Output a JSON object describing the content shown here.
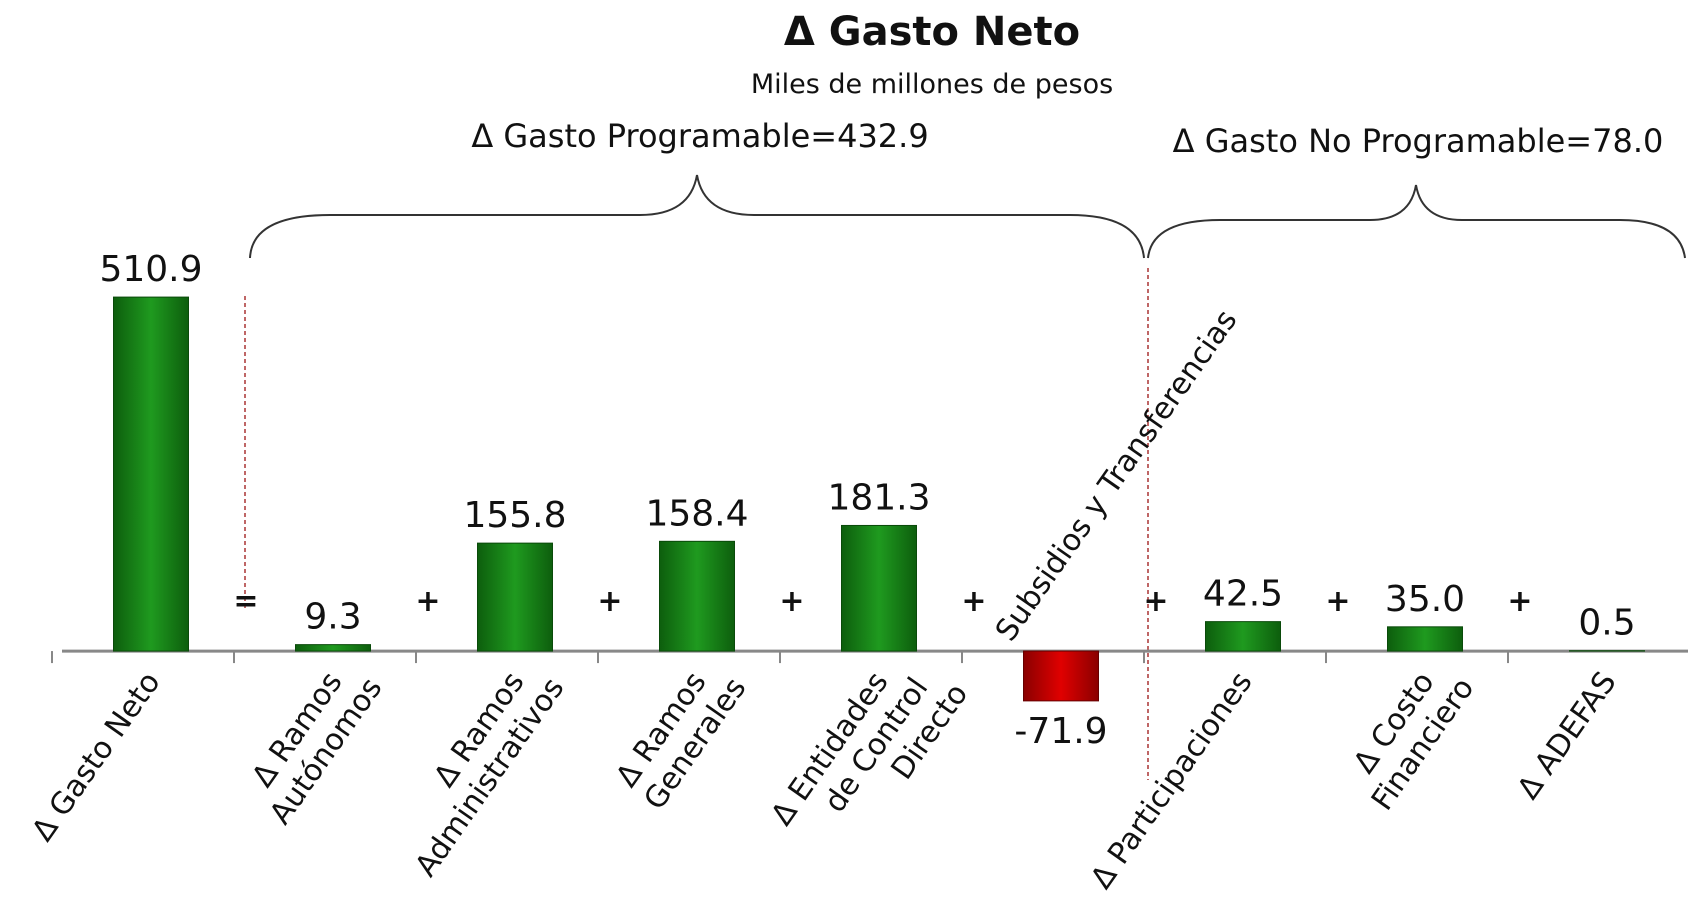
{
  "chart_data": {
    "type": "bar",
    "title": "Δ Gasto Neto",
    "subtitle": "Miles de millones de pesos",
    "categories": [
      "Δ Gasto Neto",
      "Δ Ramos\nAutónomos",
      "Δ Ramos\nAdministrativos",
      "Δ Ramos\nGenerales",
      "Δ Entidades\nde Control\nDirecto",
      "Subsidios y Transferencias",
      "Δ Participaciones",
      "Δ Costo\nFinanciero",
      "Δ ADEFAS"
    ],
    "values": [
      510.9,
      9.3,
      155.8,
      158.4,
      181.3,
      -71.9,
      42.5,
      35.0,
      0.5
    ],
    "value_labels": [
      "510.9",
      "9.3",
      "155.8",
      "158.4",
      "181.3",
      "-71.9",
      "42.5",
      "35.0",
      "0.5"
    ],
    "operators": [
      "=",
      "+",
      "+",
      "+",
      "+",
      "+",
      "+",
      "+"
    ],
    "annotations": [
      "Δ Gasto Programable=432.9",
      "Δ Gasto No Programable=78.0"
    ],
    "color": "#1c8a1c",
    "negative_color": "#d00000",
    "ylim": [
      -150,
      550
    ]
  }
}
